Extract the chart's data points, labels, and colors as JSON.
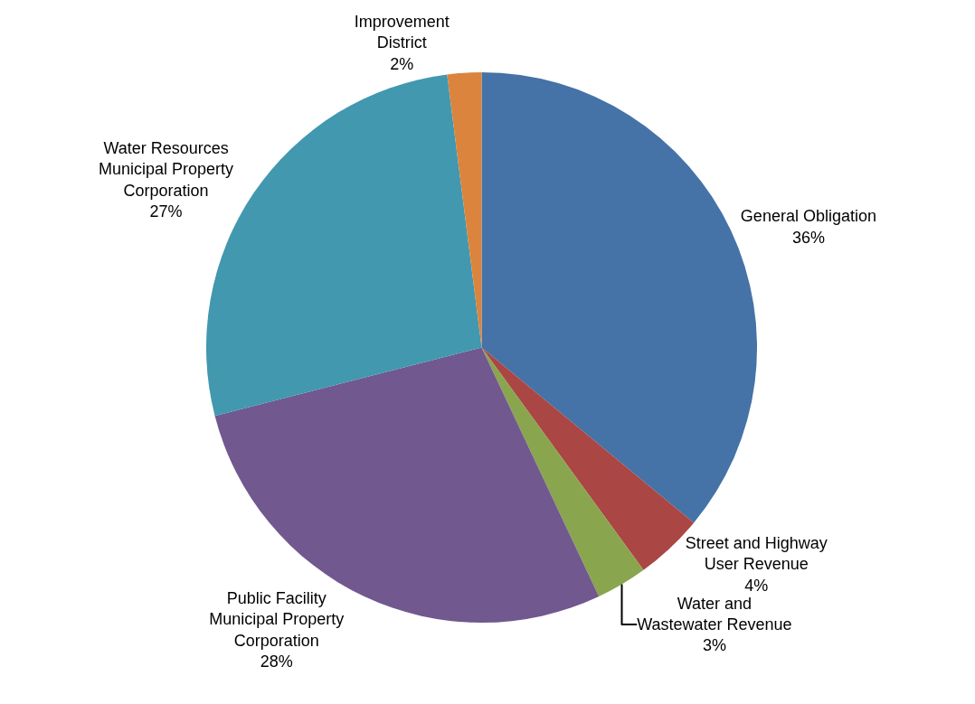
{
  "chart_data": {
    "type": "pie",
    "categories": [
      "General Obligation",
      "Street and Highway User Revenue",
      "Water and Wastewater Revenue",
      "Public Facility Municipal Property Corporation",
      "Water Resources Municipal Property Corporation",
      "Improvement District"
    ],
    "values": [
      36,
      4,
      3,
      28,
      27,
      2
    ],
    "value_labels": [
      "36%",
      "4%",
      "3%",
      "28%",
      "27%",
      "2%"
    ],
    "colors": [
      "#4572a7",
      "#aa4643",
      "#89a54e",
      "#71588f",
      "#4198af",
      "#db843d"
    ],
    "legend": false
  }
}
